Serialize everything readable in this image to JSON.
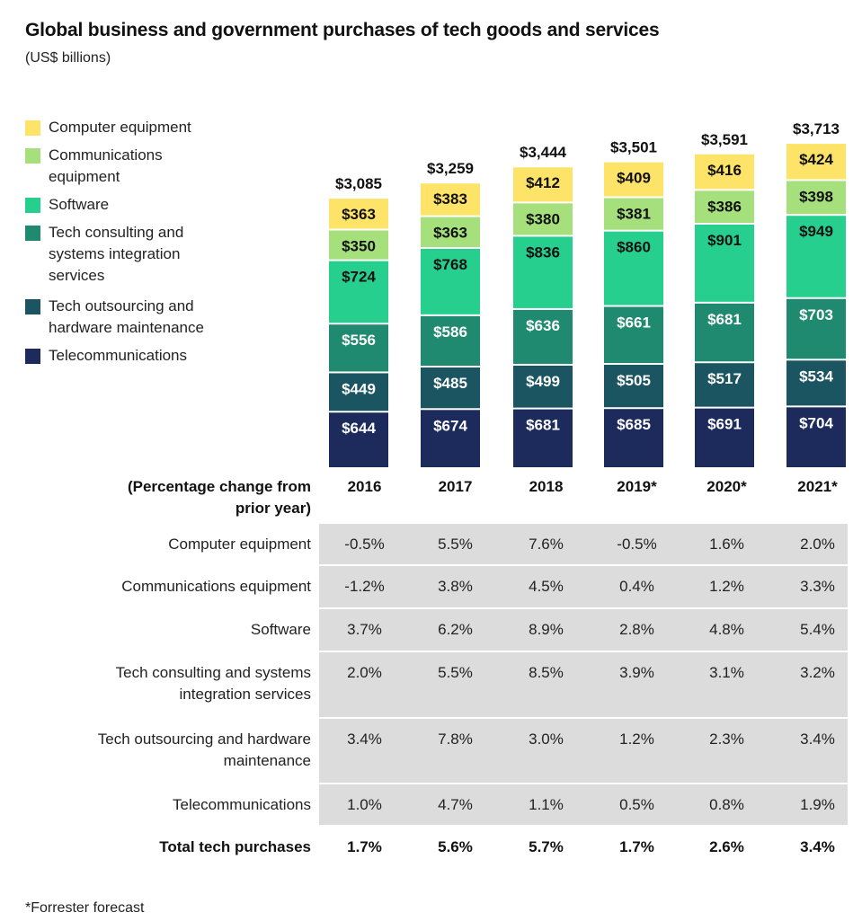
{
  "title": "Global business and government purchases of tech goods and services",
  "subtitle": "(US$ billions)",
  "colors": {
    "computer_equipment": "#fde468",
    "communications_equipment": "#a6e07c",
    "software": "#27cf8e",
    "tech_consulting": "#1f8a6f",
    "tech_outsourcing": "#1b5561",
    "telecommunications": "#1c2b5c"
  },
  "chart_data": {
    "type": "bar",
    "stacked": true,
    "title": "Global business and government purchases of tech goods and services",
    "ylabel": "",
    "xlabel": "",
    "unit": "US$ billions",
    "categories": [
      "2016",
      "2017",
      "2018",
      "2019*",
      "2020*",
      "2021*"
    ],
    "totals": [
      "$3,085",
      "$3,259",
      "$3,444",
      "$3,501",
      "$3,591",
      "$3,713"
    ],
    "total_values": [
      3085,
      3259,
      3444,
      3501,
      3591,
      3713
    ],
    "series": [
      {
        "name": "Telecommunications",
        "key": "telecommunications",
        "values": [
          644,
          674,
          681,
          685,
          691,
          704
        ],
        "label_color": "#ffffff"
      },
      {
        "name": "Tech outsourcing and hardware maintenance",
        "key": "tech_outsourcing",
        "values": [
          449,
          485,
          499,
          505,
          517,
          534
        ],
        "label_color": "#ffffff"
      },
      {
        "name": "Tech consulting and systems integration services",
        "key": "tech_consulting",
        "values": [
          556,
          586,
          636,
          661,
          681,
          703
        ],
        "label_color": "#ffffff"
      },
      {
        "name": "Software",
        "key": "software",
        "values": [
          724,
          768,
          836,
          860,
          901,
          949
        ],
        "label_color": "#111111"
      },
      {
        "name": "Communications equipment",
        "key": "communications_equipment",
        "values": [
          350,
          363,
          380,
          381,
          386,
          398
        ],
        "label_color": "#111111"
      },
      {
        "name": "Computer equipment",
        "key": "computer_equipment",
        "values": [
          363,
          383,
          412,
          409,
          416,
          424
        ],
        "label_color": "#111111"
      }
    ],
    "legend_placement": "left",
    "grid": false
  },
  "legend": [
    {
      "label": "Computer equipment",
      "key": "computer_equipment"
    },
    {
      "label": "Communications equipment",
      "key": "communications_equipment"
    },
    {
      "label": "Software",
      "key": "software"
    },
    {
      "label": "Tech consulting and systems integration services",
      "key": "tech_consulting"
    },
    {
      "label": "Tech outsourcing and hardware maintenance",
      "key": "tech_outsourcing"
    },
    {
      "label": "Telecommunications",
      "key": "telecommunications"
    }
  ],
  "table": {
    "header_label": "(Percentage change from prior year)",
    "years": [
      "2016",
      "2017",
      "2018",
      "2019*",
      "2020*",
      "2021*"
    ],
    "rows": [
      {
        "label": "Computer equipment",
        "values": [
          "-0.5%",
          "5.5%",
          "7.6%",
          "-0.5%",
          "1.6%",
          "2.0%"
        ]
      },
      {
        "label": "Communications equipment",
        "values": [
          "-1.2%",
          "3.8%",
          "4.5%",
          "0.4%",
          "1.2%",
          "3.3%"
        ]
      },
      {
        "label": "Software",
        "values": [
          "3.7%",
          "6.2%",
          "8.9%",
          "2.8%",
          "4.8%",
          "5.4%"
        ]
      },
      {
        "label": "Tech consulting and systems integration services",
        "values": [
          "2.0%",
          "5.5%",
          "8.5%",
          "3.9%",
          "3.1%",
          "3.2%"
        ]
      },
      {
        "label": "Tech outsourcing and hardware maintenance",
        "values": [
          "3.4%",
          "7.8%",
          "3.0%",
          "1.2%",
          "2.3%",
          "3.4%"
        ]
      },
      {
        "label": "Telecommunications",
        "values": [
          "1.0%",
          "4.7%",
          "1.1%",
          "0.5%",
          "0.8%",
          "1.9%"
        ]
      }
    ],
    "total": {
      "label": "Total tech purchases",
      "values": [
        "1.7%",
        "5.6%",
        "5.7%",
        "1.7%",
        "2.6%",
        "3.4%"
      ]
    }
  },
  "footnote": "*Forrester forecast"
}
